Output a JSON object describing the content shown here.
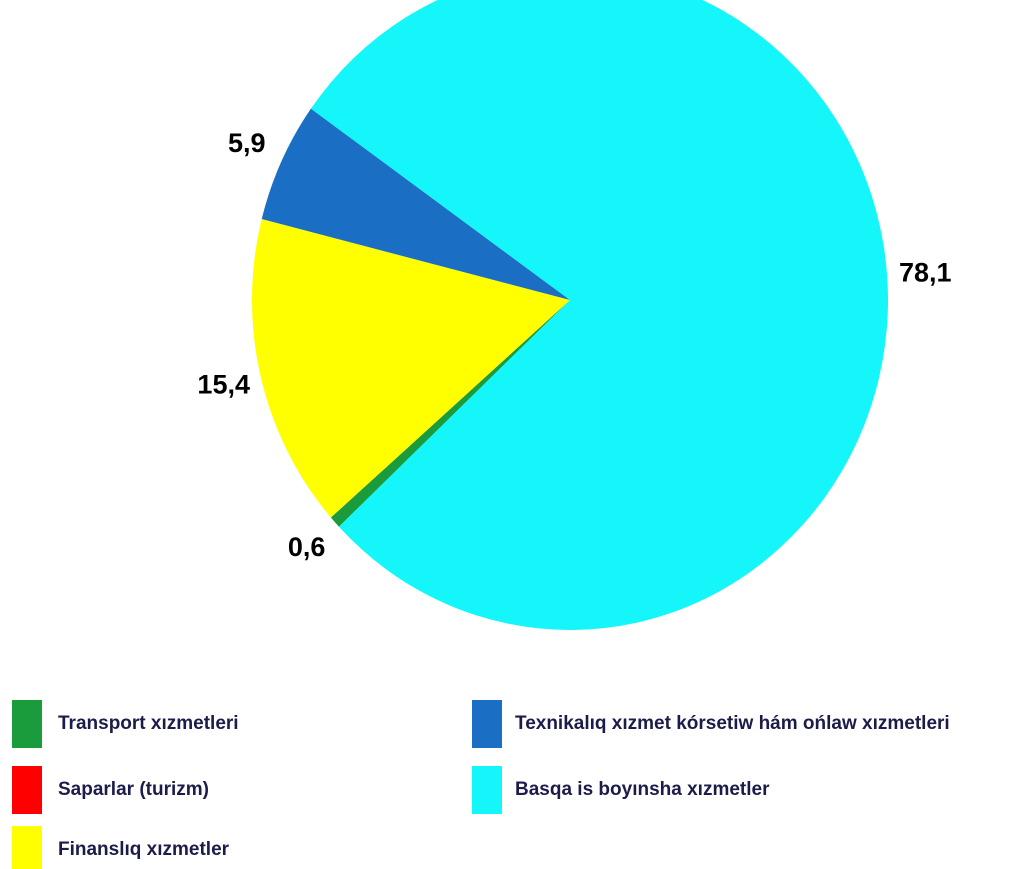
{
  "chart_data": {
    "type": "pie",
    "categories": [
      "Transport xızmetleri",
      "Saparlar (turizm)",
      "Finanslıq xızmetler",
      "Texnikalıq xızmet kórsetiw hám ońlaw xızmetleri",
      "Basqa is boyınsha xızmetler"
    ],
    "values": [
      0.6,
      0,
      15.4,
      5.9,
      78.1
    ],
    "value_labels": [
      "0,6",
      null,
      "15,4",
      "5,9",
      "78,1"
    ],
    "colors": [
      "#1a9c3c",
      "#ff0000",
      "#ffff00",
      "#1a6fc4",
      "#14f6fa"
    ]
  }
}
